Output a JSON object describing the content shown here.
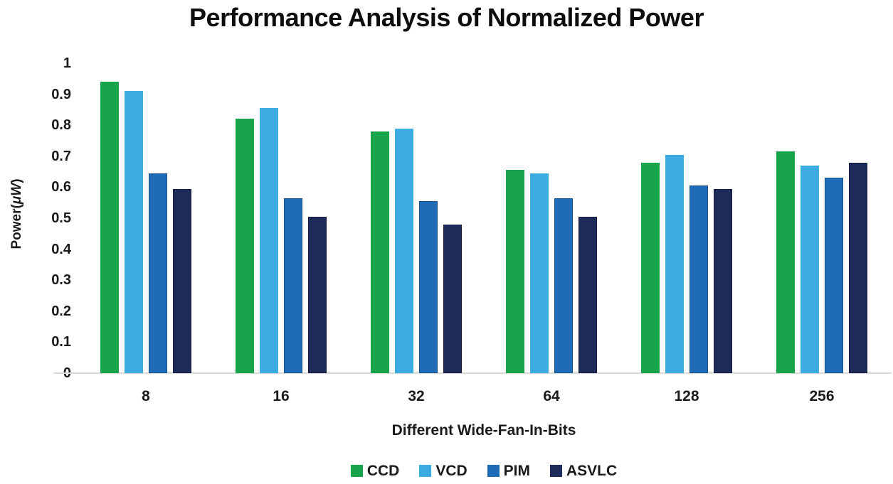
{
  "chart_data": {
    "type": "bar",
    "title": "Performance Analysis of Normalized Power",
    "xlabel": "Different Wide-Fan-In-Bits",
    "ylabel": "Power(μW)",
    "ylabel_parts": {
      "prefix": "Power(",
      "unit": "μW",
      "suffix": ")"
    },
    "ylim": [
      0,
      1
    ],
    "ytick_labels": [
      "0",
      "0.1",
      "0.2",
      "0.3",
      "0.4",
      "0.5",
      "0.6",
      "0.7",
      "0.8",
      "0.9",
      "1"
    ],
    "categories": [
      "8",
      "16",
      "32",
      "64",
      "128",
      "256"
    ],
    "series": [
      {
        "name": "CCD",
        "color": "#17a44a",
        "border_color": null,
        "values": [
          0.94,
          0.82,
          0.78,
          0.655,
          0.68,
          0.715
        ]
      },
      {
        "name": "VCD",
        "color": "#3bace2",
        "border_color": null,
        "values": [
          0.91,
          0.855,
          0.79,
          0.645,
          0.705,
          0.67
        ]
      },
      {
        "name": "PIM",
        "color": "#1e6cb8",
        "border_color": "#165291",
        "values": [
          0.645,
          0.565,
          0.555,
          0.565,
          0.605,
          0.63
        ]
      },
      {
        "name": "ASVLC",
        "color": "#1e2a5a",
        "border_color": "#131d40",
        "values": [
          0.595,
          0.505,
          0.48,
          0.505,
          0.595,
          0.68
        ]
      }
    ],
    "grid": false,
    "legend_position": "bottom",
    "axis_line_color": "#d9d9d9"
  }
}
